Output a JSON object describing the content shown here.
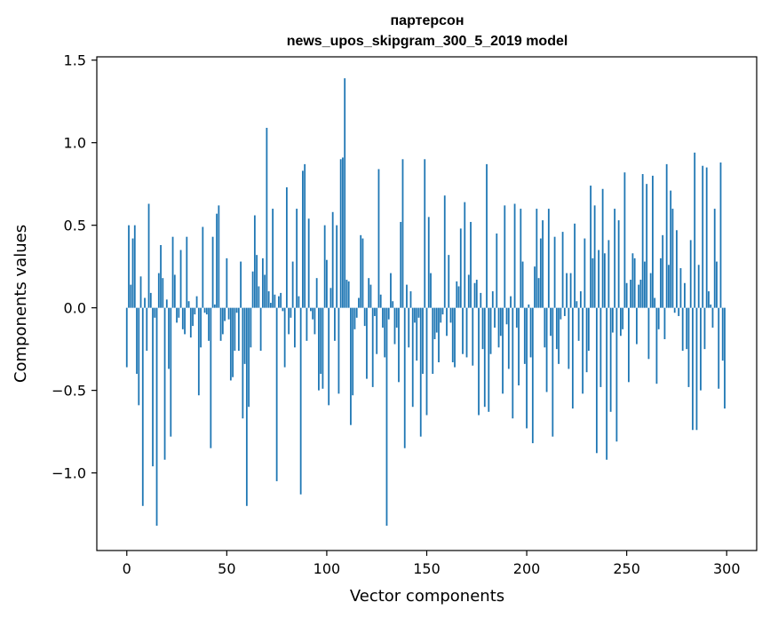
{
  "chart_data": {
    "type": "bar",
    "title_line1": "партерсон",
    "title_line2": "news_upos_skipgram_300_5_2019 model",
    "xlabel": "Vector components",
    "ylabel": "Components values",
    "xlim": [
      -15,
      315
    ],
    "ylim": [
      -1.47,
      1.52
    ],
    "xticks": [
      0,
      50,
      100,
      150,
      200,
      250,
      300
    ],
    "xtick_labels": [
      "0",
      "50",
      "100",
      "150",
      "200",
      "250",
      "300"
    ],
    "yticks": [
      -1.0,
      -0.5,
      0.0,
      0.5,
      1.0,
      1.5
    ],
    "ytick_labels": [
      "−1.0",
      "−0.5",
      "0.0",
      "0.5",
      "1.0",
      "1.5"
    ],
    "bar_color": "#1f77b4",
    "grid": false,
    "values": [
      -0.36,
      0.5,
      0.14,
      0.42,
      0.5,
      -0.4,
      -0.59,
      0.19,
      -1.2,
      0.06,
      -0.26,
      0.63,
      0.09,
      -0.96,
      -0.06,
      -1.32,
      0.21,
      0.38,
      0.18,
      -0.92,
      0.05,
      -0.37,
      -0.78,
      0.43,
      0.2,
      -0.09,
      -0.06,
      0.35,
      -0.13,
      -0.16,
      0.43,
      0.04,
      -0.18,
      -0.11,
      -0.04,
      0.07,
      -0.53,
      -0.24,
      0.49,
      -0.03,
      -0.04,
      -0.2,
      -0.85,
      0.43,
      0.02,
      0.57,
      0.62,
      -0.2,
      -0.16,
      -0.08,
      0.3,
      -0.07,
      -0.44,
      -0.42,
      -0.26,
      -0.03,
      -0.26,
      0.28,
      -0.67,
      -0.34,
      -1.2,
      -0.6,
      -0.24,
      0.22,
      0.56,
      0.32,
      0.13,
      -0.26,
      0.3,
      0.2,
      1.09,
      0.1,
      0.03,
      0.6,
      0.08,
      -1.05,
      0.07,
      0.09,
      -0.02,
      -0.36,
      0.73,
      -0.16,
      -0.06,
      0.28,
      -0.24,
      0.6,
      0.07,
      -1.13,
      0.83,
      0.87,
      -0.2,
      0.54,
      -0.02,
      -0.07,
      -0.16,
      0.18,
      -0.5,
      -0.4,
      -0.49,
      0.5,
      0.29,
      -0.59,
      0.12,
      0.58,
      -0.2,
      0.5,
      -0.52,
      0.9,
      0.91,
      1.39,
      0.17,
      0.16,
      -0.71,
      -0.53,
      -0.13,
      -0.06,
      0.06,
      0.44,
      0.42,
      -0.11,
      -0.43,
      0.18,
      0.14,
      -0.48,
      -0.05,
      -0.28,
      0.84,
      0.08,
      -0.12,
      -0.3,
      -1.32,
      -0.07,
      0.21,
      0.04,
      -0.22,
      -0.12,
      -0.45,
      0.52,
      0.9,
      -0.85,
      0.14,
      -0.24,
      0.1,
      -0.6,
      -0.09,
      -0.32,
      -0.06,
      -0.78,
      -0.4,
      0.9,
      -0.65,
      0.55,
      0.21,
      -0.4,
      -0.19,
      -0.15,
      -0.33,
      -0.09,
      -0.04,
      0.68,
      -0.17,
      0.32,
      -0.09,
      -0.33,
      -0.36,
      0.16,
      0.13,
      0.48,
      -0.28,
      0.64,
      -0.3,
      0.2,
      0.52,
      -0.35,
      0.15,
      0.17,
      -0.65,
      0.09,
      -0.25,
      -0.6,
      0.87,
      -0.63,
      -0.28,
      0.1,
      -0.12,
      0.45,
      -0.24,
      -0.17,
      -0.52,
      0.62,
      -0.1,
      -0.37,
      0.07,
      -0.67,
      0.63,
      -0.12,
      -0.47,
      0.6,
      0.28,
      -0.34,
      -0.73,
      0.02,
      -0.3,
      -0.82,
      0.25,
      0.6,
      0.18,
      0.42,
      0.53,
      -0.24,
      -0.51,
      0.6,
      -0.17,
      -0.78,
      0.43,
      -0.25,
      -0.34,
      -0.07,
      0.46,
      -0.05,
      0.21,
      -0.37,
      0.21,
      -0.61,
      0.51,
      0.04,
      -0.2,
      0.1,
      -0.52,
      0.42,
      -0.39,
      -0.26,
      0.74,
      0.3,
      0.62,
      -0.88,
      0.35,
      -0.48,
      0.72,
      0.33,
      -0.92,
      0.41,
      -0.63,
      -0.15,
      0.6,
      -0.81,
      0.53,
      -0.17,
      -0.13,
      0.82,
      0.15,
      -0.45,
      0.17,
      0.33,
      0.3,
      -0.22,
      0.14,
      0.17,
      0.81,
      0.28,
      0.75,
      -0.31,
      0.21,
      0.8,
      0.06,
      -0.46,
      -0.13,
      0.3,
      0.44,
      -0.19,
      0.87,
      0.26,
      0.71,
      0.6,
      -0.03,
      0.47,
      -0.05,
      0.24,
      -0.26,
      0.15,
      -0.25,
      -0.48,
      0.41,
      -0.74,
      0.94,
      -0.74,
      0.26,
      -0.5,
      0.86,
      -0.25,
      0.85,
      0.1,
      0.02,
      -0.12,
      0.6,
      0.28,
      -0.49,
      0.88,
      -0.32,
      -0.61
    ]
  }
}
